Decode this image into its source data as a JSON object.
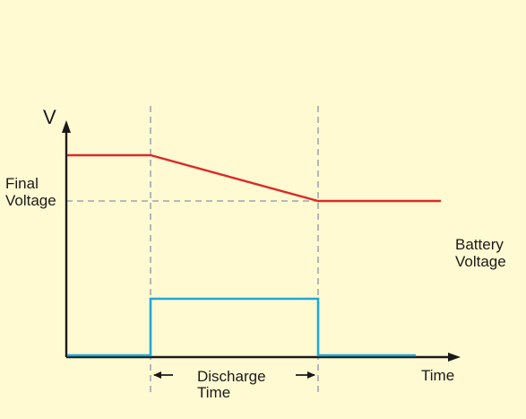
{
  "labels": {
    "y_axis": "V",
    "x_axis": "Time",
    "final_voltage_line1": "Final",
    "final_voltage_line2": "Voltage",
    "battery_voltage_line1": "Battery",
    "battery_voltage_line2": "Voltage",
    "discharge_time_line1": "Discharge",
    "discharge_time_line2": "Time"
  },
  "colors": {
    "background": "#fffad2",
    "axes": "#1a1a1a",
    "voltage_trace": "#d92b2b",
    "discharge_trace": "#22a6d8",
    "guide_lines": "#8a94a6"
  }
}
